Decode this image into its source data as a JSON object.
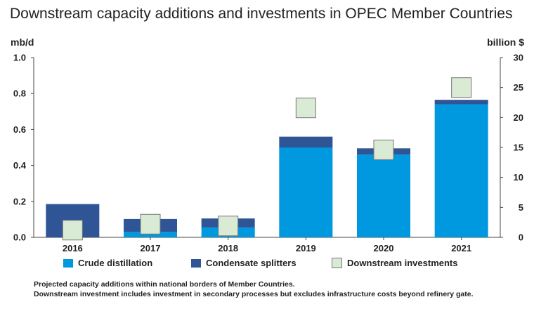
{
  "title": "Downstream capacity additions and investments in OPEC Member Countries",
  "left_unit": "mb/d",
  "right_unit": "billion $",
  "colors": {
    "crude_distillation": "#0099e0",
    "condensate_splitters": "#2f5596",
    "downstream_investments_fill": "#d9ebd4",
    "downstream_investments_border": "#777777",
    "axis": "#444444"
  },
  "chart_data": {
    "type": "bar",
    "stacked": true,
    "categories": [
      "2016",
      "2017",
      "2018",
      "2019",
      "2020",
      "2021"
    ],
    "series": [
      {
        "name": "Crude distillation",
        "axis": "left",
        "values": [
          0.0,
          0.03,
          0.055,
          0.5,
          0.46,
          0.74
        ]
      },
      {
        "name": "Condensate splitters",
        "axis": "left",
        "values": [
          0.185,
          0.072,
          0.05,
          0.06,
          0.035,
          0.025
        ]
      },
      {
        "name": "Downstream investments",
        "axis": "right",
        "marker": "square",
        "values": [
          1.2,
          2.2,
          1.9,
          21.6,
          14.6,
          25.0
        ]
      }
    ],
    "y_left": {
      "label": "mb/d",
      "range": [
        0,
        1.0
      ],
      "ticks": [
        "0.0",
        "0.2",
        "0.4",
        "0.6",
        "0.8",
        "1.0"
      ]
    },
    "y_right": {
      "label": "billion $",
      "range": [
        0,
        30
      ],
      "ticks": [
        "0",
        "5",
        "10",
        "15",
        "20",
        "25",
        "30"
      ]
    },
    "grid": false,
    "legend_position": "bottom"
  },
  "notes": [
    "Projected capacity additions within national borders of Member Countries.",
    "Downstream investment includes investment in secondary processes but excludes infrastructure costs beyond refinery gate."
  ]
}
